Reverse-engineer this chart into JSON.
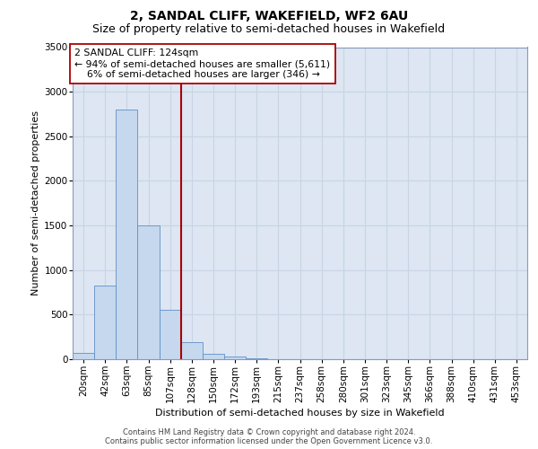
{
  "title_line1": "2, SANDAL CLIFF, WAKEFIELD, WF2 6AU",
  "title_line2": "Size of property relative to semi-detached houses in Wakefield",
  "xlabel": "Distribution of semi-detached houses by size in Wakefield",
  "ylabel": "Number of semi-detached properties",
  "footnote": "Contains HM Land Registry data © Crown copyright and database right 2024.\nContains public sector information licensed under the Open Government Licence v3.0.",
  "bin_labels": [
    "20sqm",
    "42sqm",
    "63sqm",
    "85sqm",
    "107sqm",
    "128sqm",
    "150sqm",
    "172sqm",
    "193sqm",
    "215sqm",
    "237sqm",
    "258sqm",
    "280sqm",
    "301sqm",
    "323sqm",
    "345sqm",
    "366sqm",
    "388sqm",
    "410sqm",
    "431sqm",
    "453sqm"
  ],
  "bar_values": [
    75,
    825,
    2800,
    1500,
    550,
    190,
    65,
    30,
    15,
    5,
    2,
    1,
    0,
    0,
    0,
    0,
    0,
    0,
    0,
    0,
    0
  ],
  "bar_color": "#c5d8ee",
  "bar_edge_color": "#6090c8",
  "ylim_max": 3500,
  "yticks": [
    0,
    500,
    1000,
    1500,
    2000,
    2500,
    3000,
    3500
  ],
  "vline_x": 5.0,
  "vline_color": "#aa0000",
  "annotation_line1": "2 SANDAL CLIFF: 124sqm",
  "annotation_line2": "← 94% of semi-detached houses are smaller (5,611)",
  "annotation_line3": "    6% of semi-detached houses are larger (346) →",
  "grid_color": "#c8d4e4",
  "bg_color": "#dde6f2",
  "title_fontsize": 10,
  "subtitle_fontsize": 9,
  "label_fontsize": 8,
  "tick_fontsize": 7.5
}
